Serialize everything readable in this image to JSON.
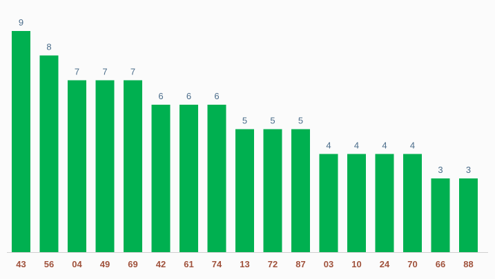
{
  "chart_data": {
    "type": "bar",
    "title": "",
    "xlabel": "",
    "ylabel": "",
    "categories": [
      "43",
      "56",
      "04",
      "49",
      "69",
      "42",
      "61",
      "74",
      "13",
      "72",
      "87",
      "03",
      "10",
      "24",
      "70",
      "66",
      "88"
    ],
    "values": [
      9,
      8,
      7,
      7,
      7,
      6,
      6,
      6,
      5,
      5,
      5,
      4,
      4,
      4,
      4,
      3,
      3
    ],
    "value_labels": [
      "9",
      "8",
      "7",
      "7",
      "7",
      "6",
      "6",
      "6",
      "5",
      "5",
      "5",
      "4",
      "4",
      "4",
      "4",
      "3",
      "3"
    ],
    "ylim": [
      0,
      9
    ],
    "grid": false,
    "legend": "none",
    "colors": {
      "bar": "#00b050",
      "value_label": "#4a6c8a",
      "tick_label": "#a0523c",
      "baseline": "#cfcfcf",
      "background": "#fbfbfb"
    }
  }
}
